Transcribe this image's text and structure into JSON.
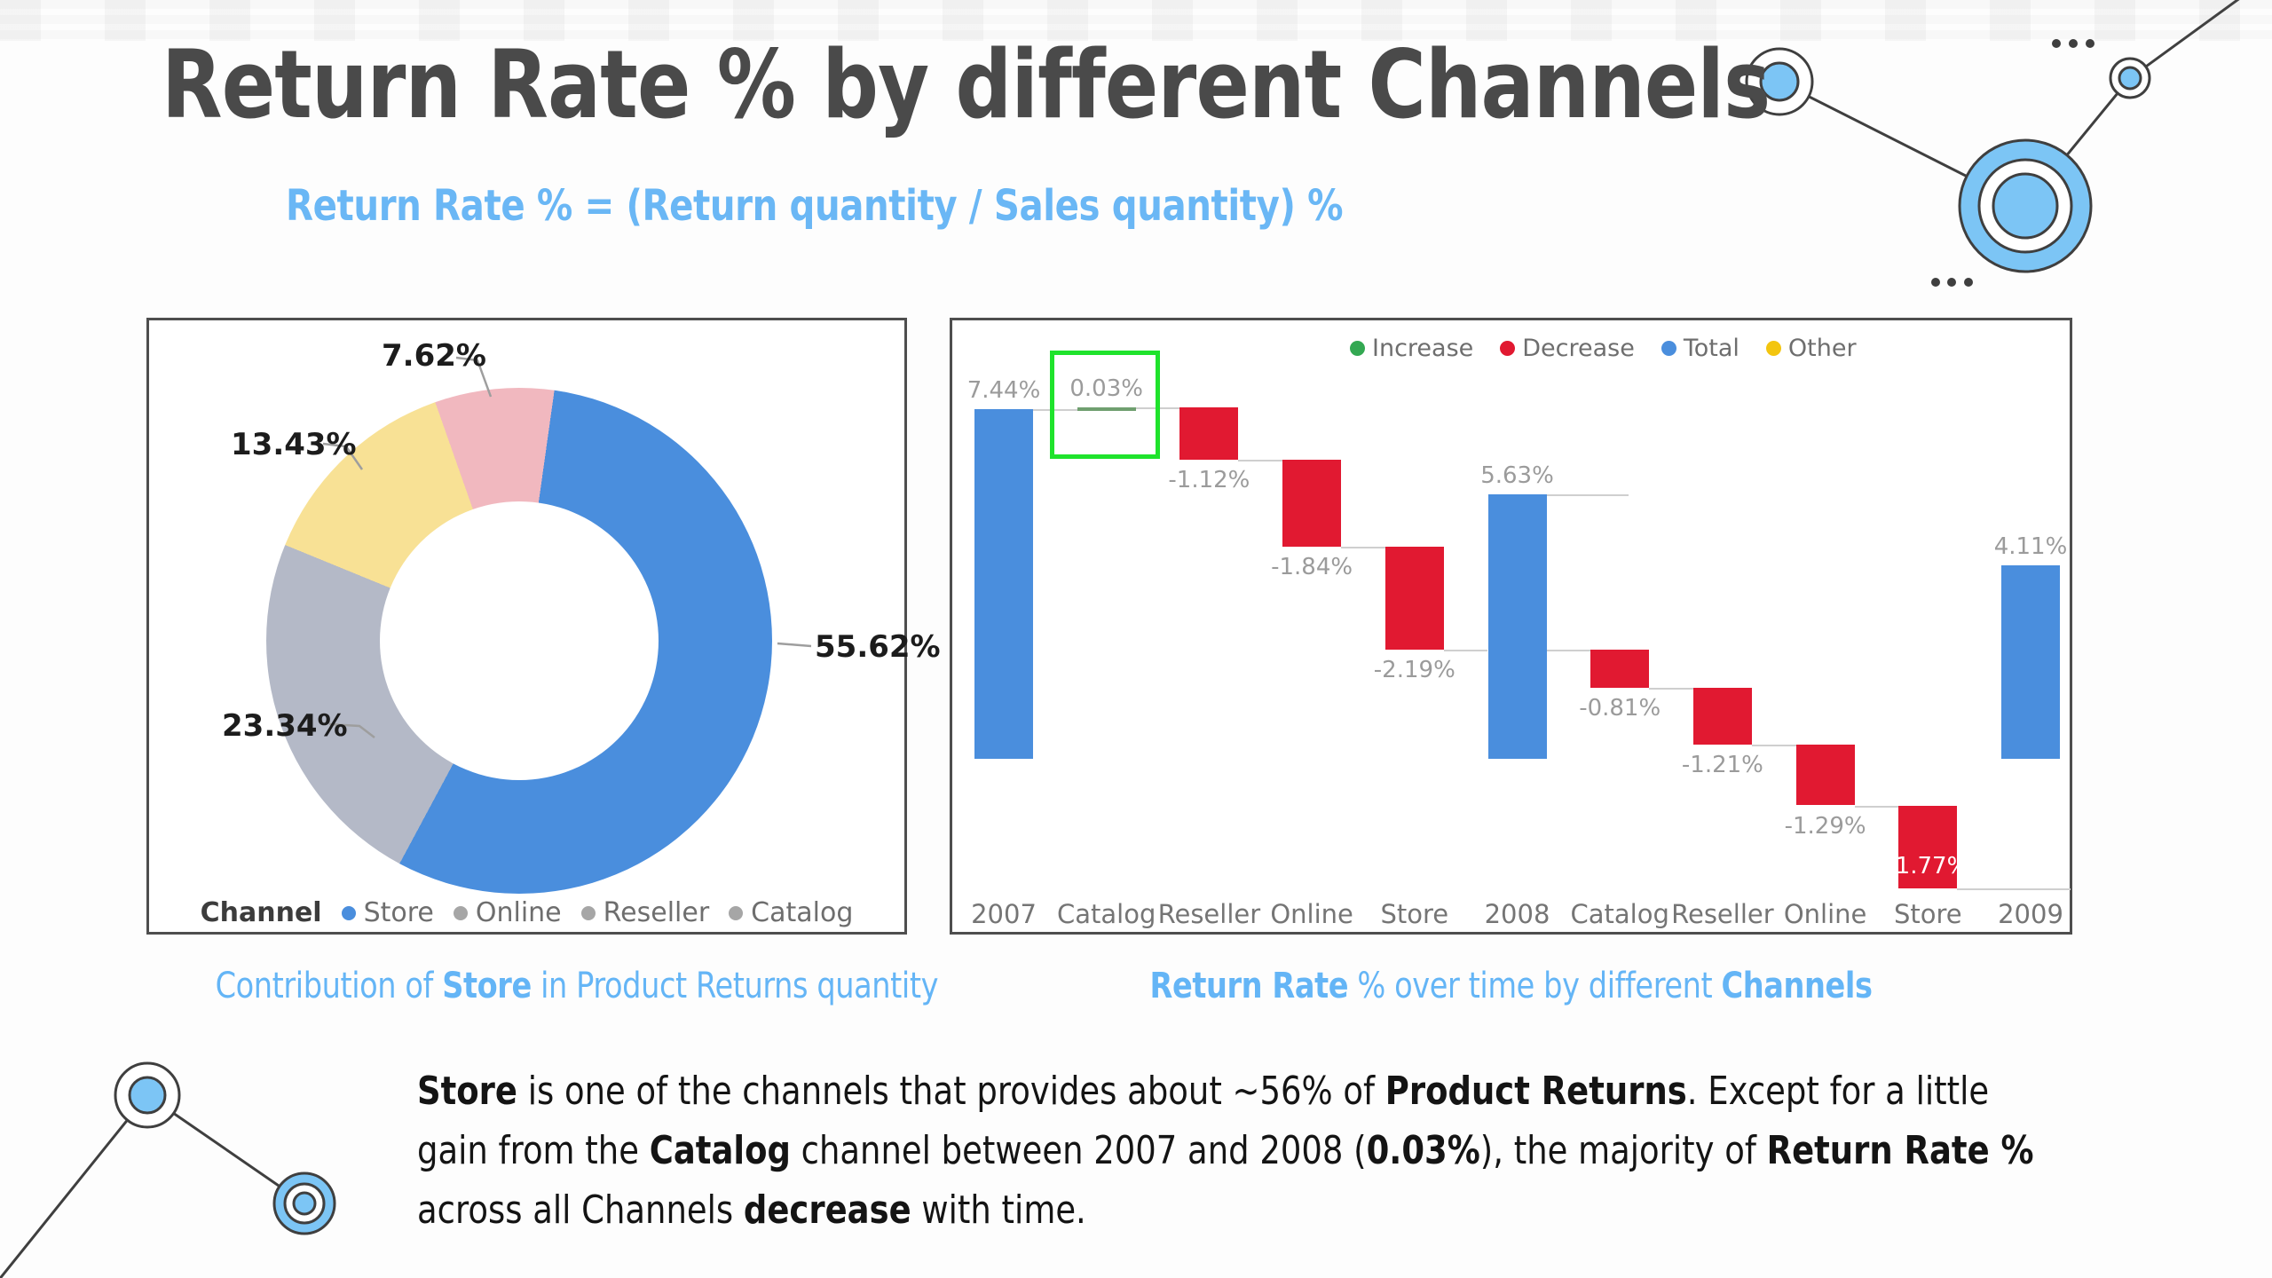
{
  "page": {
    "title": "Return Rate % by different Channels",
    "subtitle": "Return Rate %  = (Return quantity / Sales quantity) %"
  },
  "colors": {
    "accent_blue": "#6ab7f5",
    "bar_blue": "#4a8edd",
    "bar_red": "#e11931",
    "increase_green": "#33a852",
    "other_yellow": "#f3c50f",
    "mini_increase_bar": "#6f9f6f",
    "highlight_green": "#1fe32c",
    "title_gray": "#4a4a4a"
  },
  "donut": {
    "legend_title": "Channel",
    "legend": [
      {
        "label": "Store",
        "dot_color": "#4a8edd"
      },
      {
        "label": "Online",
        "dot_color": "#a6a6a6"
      },
      {
        "label": "Reseller",
        "dot_color": "#a6a6a6"
      },
      {
        "label": "Catalog",
        "dot_color": "#a6a6a6"
      }
    ],
    "callouts": [
      {
        "text": "7.62%"
      },
      {
        "text": "13.43%"
      },
      {
        "text": "23.34%"
      },
      {
        "text": "55.62%"
      }
    ]
  },
  "waterfall": {
    "legend": [
      {
        "label": "Increase",
        "color": "#33a852"
      },
      {
        "label": "Decrease",
        "color": "#e11931"
      },
      {
        "label": "Total",
        "color": "#4a8edd"
      },
      {
        "label": "Other",
        "color": "#f3c50f"
      }
    ]
  },
  "captions": {
    "left": [
      {
        "t": "Contribution of ",
        "b": 0
      },
      {
        "t": "Store",
        "b": 1
      },
      {
        "t": " in Product Returns quantity",
        "b": 0
      }
    ],
    "right": [
      {
        "t": "Return Rate",
        "b": 1
      },
      {
        "t": " % over time by different ",
        "b": 0
      },
      {
        "t": "Channels",
        "b": 1
      }
    ]
  },
  "paragraph": {
    "lines": [
      [
        {
          "t": "Store",
          "b": 1
        },
        {
          "t": " is one of the channels that provides about ~56% of ",
          "b": 0
        },
        {
          "t": "Product Returns",
          "b": 1
        },
        {
          "t": ". Except for a little",
          "b": 0
        }
      ],
      [
        {
          "t": "gain from the ",
          "b": 0
        },
        {
          "t": "Catalog",
          "b": 1
        },
        {
          "t": " channel between 2007 and 2008 (",
          "b": 0
        },
        {
          "t": "0.03%",
          "b": 1
        },
        {
          "t": "), the majority of ",
          "b": 0
        },
        {
          "t": "Return Rate %",
          "b": 1
        }
      ],
      [
        {
          "t": "across all Channels ",
          "b": 0
        },
        {
          "t": "decrease",
          "b": 1
        },
        {
          "t": " with time.",
          "b": 0
        }
      ]
    ]
  },
  "chart_data": [
    {
      "type": "pie",
      "subtype": "donut",
      "title": "Contribution of Store in Product Returns quantity",
      "labels": [
        "Store",
        "Online",
        "Reseller",
        "Catalog"
      ],
      "values": [
        55.62,
        23.34,
        13.43,
        7.62
      ],
      "display_values": [
        "55.62%",
        "23.34%",
        "13.43%",
        "7.62%"
      ],
      "unit": "%",
      "hole_ratio": 0.55,
      "start_angle_deg": 8,
      "colors": [
        "#4a8edd",
        "#b4b9c7",
        "#f8e195",
        "#f1b8bf"
      ],
      "legend_title": "Channel",
      "legend_position": "bottom"
    },
    {
      "type": "bar",
      "subtype": "waterfall",
      "title": "Return Rate % over time by different Channels",
      "ylim": [
        -2.9,
        7.6
      ],
      "baseline": 0,
      "grid": false,
      "legend_position": "top",
      "legend": [
        "Increase",
        "Decrease",
        "Total",
        "Other"
      ],
      "steps": [
        {
          "label": "2007",
          "kind": "total",
          "value": 7.44,
          "display": "7.44%"
        },
        {
          "label": "Catalog",
          "kind": "increase",
          "value": 0.03,
          "display": "0.03%",
          "highlighted": true
        },
        {
          "label": "Reseller",
          "kind": "decrease",
          "value": -1.12,
          "display": "-1.12%"
        },
        {
          "label": "Online",
          "kind": "decrease",
          "value": -1.84,
          "display": "-1.84%"
        },
        {
          "label": "Store",
          "kind": "decrease",
          "value": -2.19,
          "display": "-2.19%"
        },
        {
          "label": "2008",
          "kind": "total",
          "value": 5.63,
          "display": "5.63%"
        },
        {
          "label": "Catalog",
          "kind": "decrease",
          "value": -0.81,
          "display": "-0.81%"
        },
        {
          "label": "Reseller",
          "kind": "decrease",
          "value": -1.21,
          "display": "-1.21%"
        },
        {
          "label": "Online",
          "kind": "decrease",
          "value": -1.29,
          "display": "-1.29%"
        },
        {
          "label": "Store",
          "kind": "decrease",
          "value": -1.77,
          "display": "-1.77%",
          "label_inside": true
        },
        {
          "label": "2009",
          "kind": "total",
          "value": 4.11,
          "display": "4.11%"
        }
      ]
    }
  ]
}
